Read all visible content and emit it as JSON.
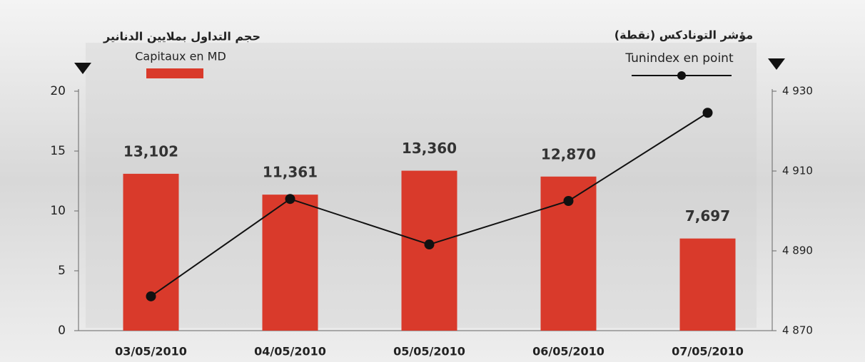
{
  "chart_data": {
    "type": "bar_line",
    "categories": [
      "03/05/2010",
      "04/05/2010",
      "05/05/2010",
      "06/05/2010",
      "07/05/2010"
    ],
    "series": [
      {
        "name": "Capitaux en MD",
        "label": "حجم التداول بملايين الدنانير",
        "type": "bar",
        "color": "#d93a2b",
        "values": [
          13.102,
          11.361,
          13.36,
          12.87,
          7.697
        ],
        "value_labels": [
          "13,102",
          "11,361",
          "13,360",
          "12,870",
          "7,697"
        ]
      },
      {
        "name": "Tunindex en point",
        "label": "مؤشر التونادكس (نقطة)",
        "type": "line",
        "color": "#111111",
        "axis": "y2",
        "values": [
          4878.6,
          4903.0,
          4891.6,
          4902.5,
          4924.6
        ]
      }
    ],
    "ylim": [
      0,
      20
    ],
    "yticks": [
      0,
      5,
      10,
      15,
      20
    ],
    "y2lim": [
      4870,
      4930
    ],
    "y2ticks": [
      {
        "value": 4870,
        "label": "4 870"
      },
      {
        "value": 4890,
        "label": "4 890"
      },
      {
        "value": 4910,
        "label": "4 910"
      },
      {
        "value": 4930,
        "label": "4 930"
      }
    ]
  }
}
